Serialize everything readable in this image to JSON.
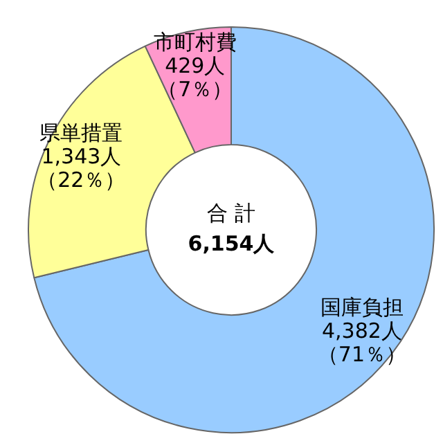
{
  "chart_data": {
    "type": "donut",
    "categories": [
      "国庫負担",
      "県単措置",
      "市町村費"
    ],
    "values": [
      4382,
      1343,
      429
    ],
    "colors": [
      "#99ccff",
      "#ffff99",
      "#ff99cc"
    ],
    "value_labels": [
      "4,382人（71％）",
      "1,343人（22％）",
      "429人（7％）"
    ],
    "annotations": [
      "合 計",
      "6,154人"
    ],
    "legend": false
  }
}
